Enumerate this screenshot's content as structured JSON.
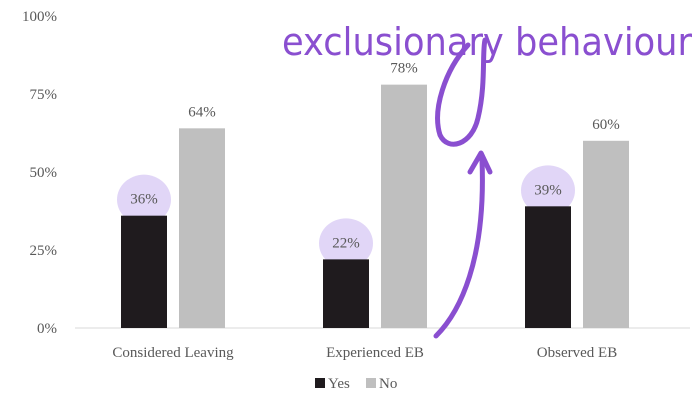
{
  "chart_data": {
    "type": "bar",
    "categories": [
      "Considered Leaving",
      "Experienced EB",
      "Observed EB"
    ],
    "series": [
      {
        "name": "Yes",
        "values": [
          36,
          22,
          39
        ],
        "color": "#1f1b1e"
      },
      {
        "name": "No",
        "values": [
          64,
          78,
          60
        ],
        "color": "#bfbfbf"
      }
    ],
    "data_labels": [
      [
        "36%",
        "22%",
        "39%"
      ],
      [
        "64%",
        "78%",
        "60%"
      ]
    ],
    "y_ticks": [
      {
        "value": 0,
        "label": "0%"
      },
      {
        "value": 25,
        "label": "25%"
      },
      {
        "value": 50,
        "label": "50%"
      },
      {
        "value": 75,
        "label": "75%"
      },
      {
        "value": 100,
        "label": "100%"
      }
    ],
    "ylim": [
      0,
      100
    ],
    "grid": false,
    "legend_position": "bottom",
    "annotation": {
      "text": "exclusionary behaviour",
      "color": "#8a4fd0",
      "highlight_color": "#d9ccf5"
    }
  }
}
